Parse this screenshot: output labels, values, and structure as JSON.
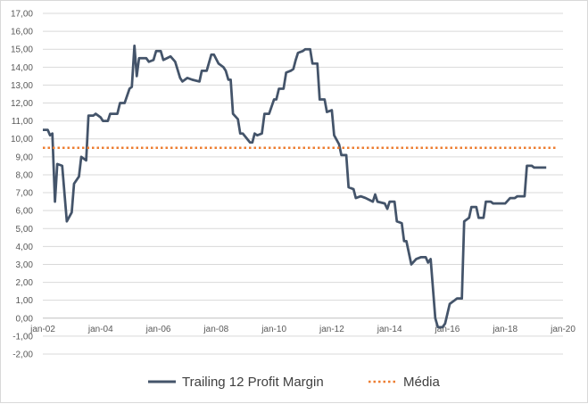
{
  "chart_data": {
    "type": "line",
    "title": "",
    "xlabel": "",
    "ylabel": "",
    "ylim": [
      -2,
      17
    ],
    "y_ticks": [
      "17,00",
      "16,00",
      "15,00",
      "14,00",
      "13,00",
      "12,00",
      "11,00",
      "10,00",
      "9,00",
      "8,00",
      "7,00",
      "6,00",
      "5,00",
      "4,00",
      "3,00",
      "2,00",
      "1,00",
      "0,00",
      "-1,00",
      "-2,00"
    ],
    "negative_tick_color": "#c00000",
    "x_ticks": [
      "jan-02",
      "jan-04",
      "jan-06",
      "jan-08",
      "jan-10",
      "jan-12",
      "jan-14",
      "jan-16",
      "jan-18",
      "jan-20"
    ],
    "x_tick_years": [
      2002,
      2004,
      2006,
      2008,
      2010,
      2012,
      2014,
      2016,
      2018,
      2020
    ],
    "xlim": [
      2002,
      2020
    ],
    "grid": true,
    "legend_position": "bottom",
    "series": [
      {
        "name": "Trailing 12 Profit Margin",
        "style": "solid",
        "color": "#44546a",
        "points": [
          [
            2002.0,
            10.5
          ],
          [
            2002.17,
            10.5
          ],
          [
            2002.25,
            10.2
          ],
          [
            2002.33,
            10.3
          ],
          [
            2002.42,
            6.5
          ],
          [
            2002.5,
            8.6
          ],
          [
            2002.67,
            8.5
          ],
          [
            2002.83,
            5.4
          ],
          [
            2003.0,
            5.9
          ],
          [
            2003.08,
            7.5
          ],
          [
            2003.25,
            7.9
          ],
          [
            2003.33,
            9.0
          ],
          [
            2003.5,
            8.8
          ],
          [
            2003.58,
            11.3
          ],
          [
            2003.75,
            11.3
          ],
          [
            2003.83,
            11.4
          ],
          [
            2004.0,
            11.2
          ],
          [
            2004.08,
            11.0
          ],
          [
            2004.25,
            11.0
          ],
          [
            2004.33,
            11.4
          ],
          [
            2004.58,
            11.4
          ],
          [
            2004.67,
            12.0
          ],
          [
            2004.83,
            12.0
          ],
          [
            2005.0,
            12.8
          ],
          [
            2005.08,
            12.9
          ],
          [
            2005.17,
            15.2
          ],
          [
            2005.25,
            13.5
          ],
          [
            2005.33,
            14.5
          ],
          [
            2005.58,
            14.5
          ],
          [
            2005.67,
            14.3
          ],
          [
            2005.83,
            14.4
          ],
          [
            2005.92,
            14.9
          ],
          [
            2006.08,
            14.9
          ],
          [
            2006.17,
            14.4
          ],
          [
            2006.42,
            14.6
          ],
          [
            2006.58,
            14.3
          ],
          [
            2006.75,
            13.4
          ],
          [
            2006.83,
            13.2
          ],
          [
            2007.0,
            13.4
          ],
          [
            2007.17,
            13.3
          ],
          [
            2007.42,
            13.2
          ],
          [
            2007.5,
            13.8
          ],
          [
            2007.67,
            13.8
          ],
          [
            2007.83,
            14.7
          ],
          [
            2007.92,
            14.7
          ],
          [
            2008.08,
            14.2
          ],
          [
            2008.25,
            14.0
          ],
          [
            2008.33,
            13.8
          ],
          [
            2008.42,
            13.3
          ],
          [
            2008.5,
            13.3
          ],
          [
            2008.58,
            11.4
          ],
          [
            2008.75,
            11.1
          ],
          [
            2008.83,
            10.3
          ],
          [
            2008.92,
            10.3
          ],
          [
            2009.17,
            9.8
          ],
          [
            2009.25,
            9.8
          ],
          [
            2009.33,
            10.3
          ],
          [
            2009.42,
            10.2
          ],
          [
            2009.58,
            10.3
          ],
          [
            2009.67,
            11.4
          ],
          [
            2009.83,
            11.4
          ],
          [
            2010.0,
            12.2
          ],
          [
            2010.08,
            12.2
          ],
          [
            2010.17,
            12.8
          ],
          [
            2010.33,
            12.8
          ],
          [
            2010.42,
            13.7
          ],
          [
            2010.58,
            13.8
          ],
          [
            2010.67,
            13.9
          ],
          [
            2010.75,
            14.4
          ],
          [
            2010.83,
            14.8
          ],
          [
            2011.0,
            14.9
          ],
          [
            2011.08,
            15.0
          ],
          [
            2011.25,
            15.0
          ],
          [
            2011.33,
            14.2
          ],
          [
            2011.5,
            14.2
          ],
          [
            2011.58,
            12.2
          ],
          [
            2011.75,
            12.2
          ],
          [
            2011.83,
            11.5
          ],
          [
            2012.0,
            11.6
          ],
          [
            2012.08,
            10.2
          ],
          [
            2012.25,
            9.7
          ],
          [
            2012.33,
            9.1
          ],
          [
            2012.5,
            9.1
          ],
          [
            2012.58,
            7.3
          ],
          [
            2012.75,
            7.2
          ],
          [
            2012.83,
            6.7
          ],
          [
            2013.0,
            6.8
          ],
          [
            2013.17,
            6.7
          ],
          [
            2013.42,
            6.5
          ],
          [
            2013.5,
            6.9
          ],
          [
            2013.58,
            6.5
          ],
          [
            2013.83,
            6.4
          ],
          [
            2013.92,
            6.1
          ],
          [
            2014.0,
            6.5
          ],
          [
            2014.17,
            6.5
          ],
          [
            2014.25,
            5.4
          ],
          [
            2014.42,
            5.3
          ],
          [
            2014.5,
            4.3
          ],
          [
            2014.58,
            4.3
          ],
          [
            2014.75,
            3.0
          ],
          [
            2014.92,
            3.3
          ],
          [
            2015.08,
            3.4
          ],
          [
            2015.25,
            3.4
          ],
          [
            2015.33,
            3.1
          ],
          [
            2015.42,
            3.3
          ],
          [
            2015.58,
            0.0
          ],
          [
            2015.67,
            -0.5
          ],
          [
            2015.83,
            -0.5
          ],
          [
            2015.92,
            -0.3
          ],
          [
            2016.08,
            0.8
          ],
          [
            2016.25,
            1.0
          ],
          [
            2016.33,
            1.1
          ],
          [
            2016.5,
            1.1
          ],
          [
            2016.58,
            5.4
          ],
          [
            2016.75,
            5.6
          ],
          [
            2016.83,
            6.2
          ],
          [
            2017.0,
            6.2
          ],
          [
            2017.08,
            5.6
          ],
          [
            2017.25,
            5.6
          ],
          [
            2017.33,
            6.5
          ],
          [
            2017.5,
            6.5
          ],
          [
            2017.58,
            6.4
          ],
          [
            2018.0,
            6.4
          ],
          [
            2018.17,
            6.7
          ],
          [
            2018.33,
            6.7
          ],
          [
            2018.42,
            6.8
          ],
          [
            2018.67,
            6.8
          ],
          [
            2018.75,
            8.5
          ],
          [
            2018.92,
            8.5
          ],
          [
            2019.0,
            8.4
          ],
          [
            2019.42,
            8.4
          ]
        ]
      },
      {
        "name": "Média",
        "style": "dotted",
        "color": "#ed7d31",
        "points": [
          [
            2002.0,
            9.5
          ],
          [
            2019.8,
            9.5
          ]
        ]
      }
    ]
  }
}
